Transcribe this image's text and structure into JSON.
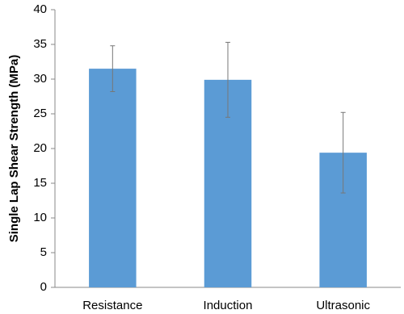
{
  "chart_data": {
    "type": "bar",
    "y_label": "Single Lap Shear Strength  (MPa)",
    "categories": [
      "Resistance",
      "Induction",
      "Ultrasonic"
    ],
    "values": [
      31.5,
      29.9,
      19.4
    ],
    "errors": [
      3.3,
      5.4,
      5.8
    ],
    "color": "#5b9bd5",
    "ylim": [
      0,
      40
    ],
    "yticks": [
      0,
      5,
      10,
      15,
      20,
      25,
      30,
      35,
      40
    ],
    "grid": false
  }
}
